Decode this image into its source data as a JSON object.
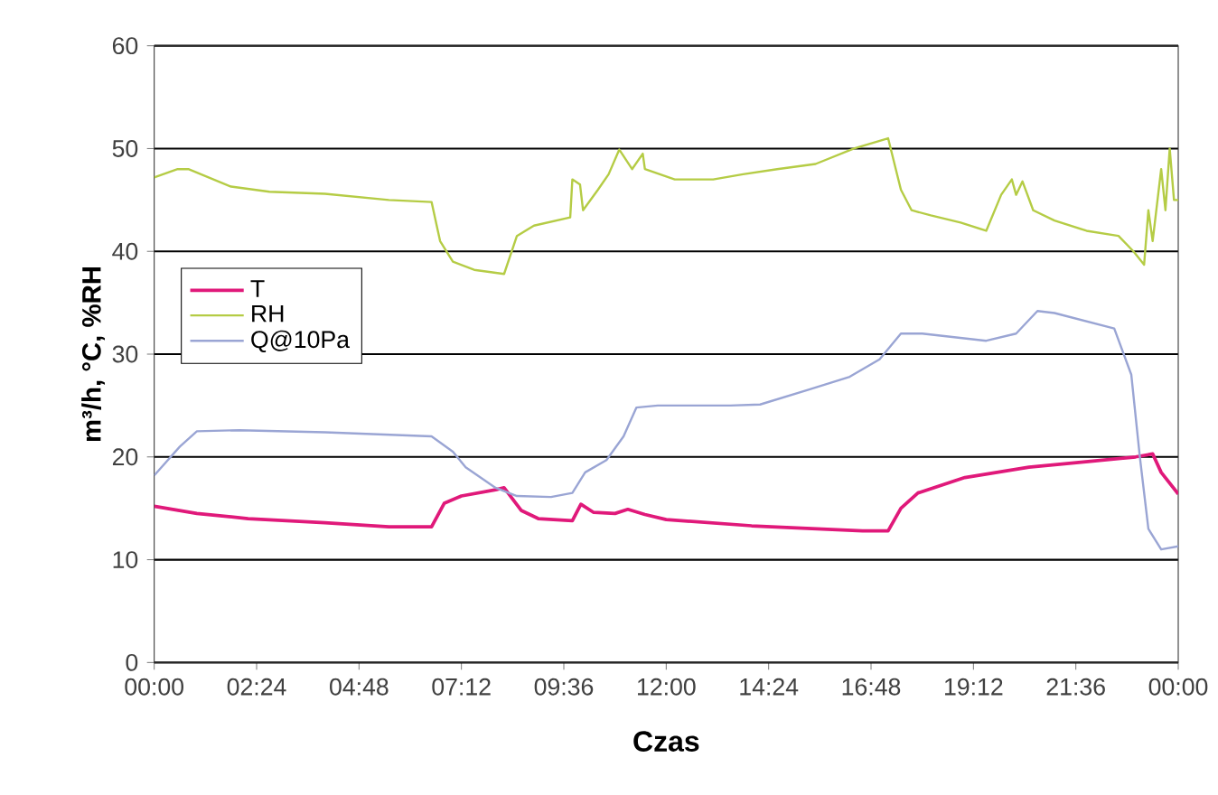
{
  "chart_data": {
    "type": "line",
    "xlabel": "Czas",
    "ylabel": "m³/h, °C, %RH",
    "xlim": [
      0,
      24
    ],
    "ylim": [
      0,
      60
    ],
    "yticks": [
      0,
      10,
      20,
      30,
      40,
      50,
      60
    ],
    "xticks": [
      {
        "value": 0,
        "label": "00:00"
      },
      {
        "value": 2.4,
        "label": "02:24"
      },
      {
        "value": 4.8,
        "label": "04:48"
      },
      {
        "value": 7.2,
        "label": "07:12"
      },
      {
        "value": 9.6,
        "label": "09:36"
      },
      {
        "value": 12,
        "label": "12:00"
      },
      {
        "value": 14.4,
        "label": "14:24"
      },
      {
        "value": 16.8,
        "label": "16:48"
      },
      {
        "value": 19.2,
        "label": "19:12"
      },
      {
        "value": 21.6,
        "label": "21:36"
      },
      {
        "value": 24,
        "label": "00:00"
      }
    ],
    "grid": "y",
    "legend": "left",
    "series": [
      {
        "name": "T",
        "color": "#e0197a",
        "x": [
          0,
          1,
          2.2,
          4,
          5.5,
          6.5,
          6.8,
          7.2,
          8,
          8.2,
          8.6,
          9,
          9.8,
          10,
          10.3,
          10.8,
          11.1,
          11.5,
          12,
          14,
          16.6,
          17.2,
          17.5,
          17.9,
          19,
          20.5,
          22,
          23,
          23.4,
          23.6,
          24
        ],
        "values": [
          15.2,
          14.5,
          14,
          13.6,
          13.2,
          13.2,
          15.5,
          16.2,
          16.8,
          17,
          14.8,
          14,
          13.8,
          15.4,
          14.6,
          14.5,
          14.9,
          14.4,
          13.9,
          13.3,
          12.8,
          12.8,
          15,
          16.5,
          18,
          19,
          19.6,
          20,
          20.3,
          18.5,
          16.4
        ]
      },
      {
        "name": "RH",
        "color": "#b5cc45",
        "x": [
          0,
          0.55,
          0.8,
          1.8,
          2.7,
          4,
          5.5,
          6.5,
          6.7,
          7,
          7.5,
          8.2,
          8.5,
          8.9,
          9.75,
          9.8,
          9.98,
          10.05,
          10.4,
          10.65,
          10.9,
          11.2,
          11.45,
          11.5,
          12.2,
          13.1,
          13.8,
          14.6,
          15.5,
          16.4,
          17.2,
          17.5,
          17.75,
          18.2,
          18.9,
          19.5,
          19.85,
          20.1,
          20.2,
          20.35,
          20.6,
          21.1,
          21.85,
          22.6,
          22.95,
          23.2,
          23.3,
          23.4,
          23.6,
          23.7,
          23.8,
          23.9,
          24
        ],
        "values": [
          47.2,
          48,
          48,
          46.3,
          45.8,
          45.6,
          45,
          44.8,
          41,
          39,
          38.2,
          37.8,
          41.5,
          42.5,
          43.3,
          47,
          46.5,
          44,
          46,
          47.5,
          49.9,
          48,
          49.5,
          48,
          47,
          47,
          47.5,
          48,
          48.5,
          50,
          51,
          46,
          44,
          43.5,
          42.8,
          42,
          45.5,
          47,
          45.5,
          46.8,
          44,
          43,
          42,
          41.5,
          40,
          38.7,
          44,
          41,
          48,
          44,
          50,
          45,
          45
        ]
      },
      {
        "name": "Q@10Pa",
        "color": "#9aa5d4",
        "x": [
          0,
          0.6,
          1,
          2,
          4,
          6.5,
          7,
          7.3,
          8,
          8.5,
          9.3,
          9.8,
          10.1,
          10.6,
          11,
          11.3,
          11.8,
          13.5,
          14.2,
          15.3,
          16.3,
          17,
          17.5,
          18,
          19.5,
          20.2,
          20.7,
          21.1,
          22.5,
          22.9,
          23.1,
          23.3,
          23.6,
          24
        ],
        "values": [
          18.2,
          21,
          22.5,
          22.6,
          22.4,
          22,
          20.5,
          19,
          17,
          16.2,
          16.1,
          16.5,
          18.5,
          19.7,
          22,
          24.8,
          25,
          25,
          25.1,
          26.5,
          27.8,
          29.5,
          32,
          32,
          31.3,
          32,
          34.2,
          34,
          32.5,
          28,
          20,
          13,
          11,
          11.3
        ]
      }
    ]
  }
}
